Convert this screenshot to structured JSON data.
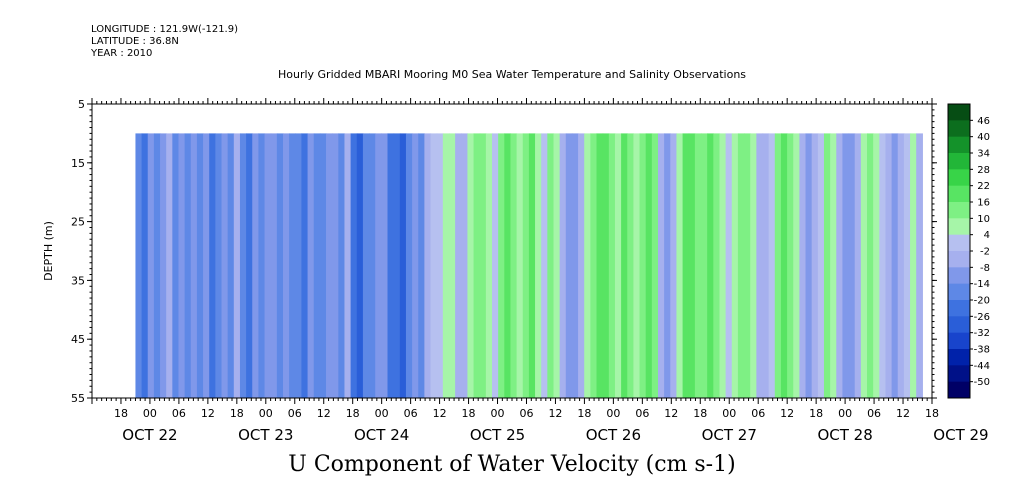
{
  "header": {
    "longitude": "LONGITUDE : 121.9W(-121.9)",
    "latitude": "LATITUDE : 36.8N",
    "year": "YEAR : 2010"
  },
  "chart_data": {
    "type": "heatmap",
    "title": "Hourly Gridded MBARI Mooring M0 Sea Water Temperature and Salinity Observations",
    "xlabel": "U Component of Water Velocity (cm s-1)",
    "ylabel": "DEPTH (m)",
    "ylim": [
      55,
      5
    ],
    "y_ticks": [
      5,
      15,
      25,
      35,
      45,
      55
    ],
    "data_depth_range": [
      10,
      55
    ],
    "hour_ticks": [
      "18",
      "00",
      "06",
      "12",
      "18",
      "00",
      "06",
      "12",
      "18",
      "00",
      "06",
      "12",
      "18",
      "00",
      "06",
      "12",
      "18",
      "00",
      "06",
      "12",
      "18",
      "00",
      "06",
      "12",
      "18",
      "00",
      "06",
      "12",
      "18",
      "00",
      "06",
      "12"
    ],
    "day_labels": [
      "OCT 22",
      "OCT 23",
      "OCT 24",
      "OCT 25",
      "OCT 26",
      "OCT 27",
      "OCT 28",
      "OCT 29"
    ],
    "time_range": [
      "2010-10-22 12:00",
      "2010-10-29 18:00"
    ],
    "data_time_range": [
      "2010-10-22 21:00",
      "2010-10-29 16:00"
    ],
    "colorbar": {
      "levels": [
        -50,
        -44,
        -38,
        -32,
        -26,
        -20,
        -14,
        -8,
        -2,
        4,
        10,
        16,
        22,
        28,
        34,
        40,
        46
      ],
      "labels": [
        "46",
        "40",
        "34",
        "28",
        "22",
        "16",
        "10",
        "4",
        "-2",
        "-8",
        "-14",
        "-20",
        "-26",
        "-32",
        "-38",
        "-44",
        "-50"
      ],
      "colors": [
        "#000066",
        "#001188",
        "#0022aa",
        "#1844cc",
        "#2a5ed8",
        "#3e72e0",
        "#5e88e6",
        "#8098ea",
        "#a6b0ee",
        "#b6c0f0",
        "#a6f5a8",
        "#7ef084",
        "#58e463",
        "#38d448",
        "#22b638",
        "#14922a",
        "#0c6e1e",
        "#064d14"
      ]
    },
    "band_values_cm_s": [
      -16,
      -22,
      -14,
      -18,
      -10,
      -8,
      -18,
      -14,
      -20,
      -12,
      -16,
      -10,
      -22,
      -18,
      -12,
      -20,
      -8,
      -16,
      -24,
      -14,
      -18,
      -10,
      -14,
      -20,
      -12,
      -16,
      -18,
      -22,
      -12,
      -16,
      -20,
      -10,
      -14,
      -18,
      -8,
      -22,
      -28,
      -20,
      -16,
      -10,
      -14,
      -22,
      -26,
      -30,
      -18,
      -12,
      -16,
      -6,
      -2,
      2,
      8,
      4,
      -4,
      -8,
      6,
      10,
      14,
      6,
      -2,
      12,
      16,
      10,
      4,
      14,
      18,
      8,
      2,
      12,
      6,
      -4,
      -10,
      -14,
      -6,
      4,
      12,
      16,
      20,
      14,
      8,
      16,
      12,
      6,
      14,
      18,
      10,
      -6,
      -12,
      -4,
      8,
      16,
      20,
      14,
      10,
      18,
      12,
      6,
      -2,
      4,
      10,
      14,
      8,
      -4,
      -8,
      2,
      12,
      16,
      10,
      4,
      -6,
      -12,
      -8,
      2,
      12,
      8,
      -4,
      -10,
      -14,
      -8,
      4,
      10,
      6,
      -2,
      -8,
      -12,
      -6,
      2,
      8,
      -4
    ]
  }
}
